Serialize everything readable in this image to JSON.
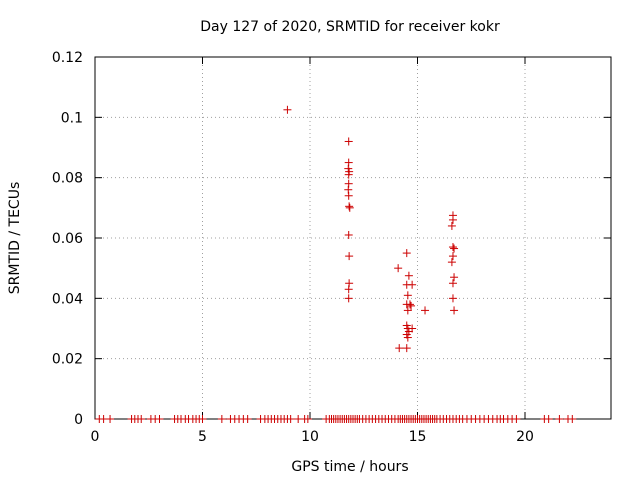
{
  "chart_data": {
    "type": "scatter",
    "title": "Day 127 of 2020, SRMTID for receiver kokr",
    "xlabel": "GPS time / hours",
    "ylabel": "SRMTID / TECUs",
    "xlim": [
      0,
      24
    ],
    "ylim": [
      0,
      0.12
    ],
    "x_ticks": [
      0,
      5,
      10,
      15,
      20
    ],
    "y_ticks": [
      0,
      0.02,
      0.04,
      0.06,
      0.08,
      0.1,
      0.12
    ],
    "x_tick_labels": [
      "0",
      "5",
      "10",
      "15",
      "20"
    ],
    "y_tick_labels": [
      "0",
      "0.02",
      "0.04",
      "0.06",
      "0.08",
      "0.1",
      "0.12"
    ],
    "grid": true,
    "marker": "+",
    "color": "#cc0000",
    "series": [
      {
        "name": "",
        "points": [
          [
            8.95,
            0.1025
          ],
          [
            11.8,
            0.092
          ],
          [
            11.8,
            0.085
          ],
          [
            11.78,
            0.083
          ],
          [
            11.82,
            0.082
          ],
          [
            11.8,
            0.081
          ],
          [
            11.8,
            0.078
          ],
          [
            11.78,
            0.076
          ],
          [
            11.8,
            0.074
          ],
          [
            11.82,
            0.0705
          ],
          [
            11.85,
            0.07
          ],
          [
            11.8,
            0.061
          ],
          [
            11.82,
            0.054
          ],
          [
            11.82,
            0.045
          ],
          [
            11.8,
            0.043
          ],
          [
            11.8,
            0.04
          ],
          [
            14.1,
            0.05
          ],
          [
            14.15,
            0.0235
          ],
          [
            14.5,
            0.055
          ],
          [
            14.6,
            0.0475
          ],
          [
            14.5,
            0.0445
          ],
          [
            14.75,
            0.0445
          ],
          [
            14.55,
            0.041
          ],
          [
            14.5,
            0.038
          ],
          [
            14.65,
            0.038
          ],
          [
            14.7,
            0.0375
          ],
          [
            14.55,
            0.036
          ],
          [
            14.5,
            0.031
          ],
          [
            14.55,
            0.03
          ],
          [
            14.75,
            0.03
          ],
          [
            14.6,
            0.029
          ],
          [
            14.5,
            0.028
          ],
          [
            14.55,
            0.027
          ],
          [
            14.5,
            0.0235
          ],
          [
            15.35,
            0.036
          ],
          [
            16.65,
            0.0675
          ],
          [
            16.65,
            0.066
          ],
          [
            16.6,
            0.064
          ],
          [
            16.65,
            0.057
          ],
          [
            16.7,
            0.0565
          ],
          [
            16.65,
            0.054
          ],
          [
            16.6,
            0.052
          ],
          [
            16.7,
            0.047
          ],
          [
            16.65,
            0.045
          ],
          [
            16.65,
            0.04
          ],
          [
            16.7,
            0.036
          ],
          [
            0.2,
            0
          ],
          [
            0.4,
            0
          ],
          [
            0.7,
            0
          ],
          [
            1.7,
            0
          ],
          [
            1.85,
            0
          ],
          [
            2.0,
            0
          ],
          [
            2.15,
            0
          ],
          [
            2.6,
            0
          ],
          [
            2.8,
            0
          ],
          [
            3.0,
            0
          ],
          [
            3.7,
            0
          ],
          [
            3.85,
            0
          ],
          [
            4.0,
            0
          ],
          [
            4.2,
            0
          ],
          [
            4.35,
            0
          ],
          [
            4.55,
            0
          ],
          [
            4.7,
            0
          ],
          [
            4.85,
            0
          ],
          [
            5.0,
            0
          ],
          [
            5.9,
            0
          ],
          [
            6.3,
            0
          ],
          [
            6.5,
            0
          ],
          [
            6.7,
            0
          ],
          [
            6.9,
            0
          ],
          [
            7.1,
            0
          ],
          [
            7.7,
            0
          ],
          [
            7.9,
            0
          ],
          [
            8.05,
            0
          ],
          [
            8.2,
            0
          ],
          [
            8.35,
            0
          ],
          [
            8.5,
            0
          ],
          [
            8.65,
            0
          ],
          [
            8.8,
            0
          ],
          [
            8.95,
            0
          ],
          [
            9.1,
            0
          ],
          [
            9.45,
            0
          ],
          [
            9.75,
            0
          ],
          [
            9.9,
            0
          ],
          [
            10.75,
            0
          ],
          [
            10.9,
            0
          ],
          [
            11.0,
            0
          ],
          [
            11.1,
            0
          ],
          [
            11.2,
            0
          ],
          [
            11.3,
            0
          ],
          [
            11.4,
            0
          ],
          [
            11.5,
            0
          ],
          [
            11.6,
            0
          ],
          [
            11.7,
            0
          ],
          [
            11.8,
            0
          ],
          [
            11.9,
            0
          ],
          [
            12.0,
            0
          ],
          [
            12.1,
            0
          ],
          [
            12.2,
            0
          ],
          [
            12.3,
            0
          ],
          [
            12.45,
            0
          ],
          [
            12.6,
            0
          ],
          [
            12.75,
            0
          ],
          [
            12.9,
            0
          ],
          [
            13.05,
            0
          ],
          [
            13.2,
            0
          ],
          [
            13.35,
            0
          ],
          [
            13.5,
            0
          ],
          [
            13.65,
            0
          ],
          [
            13.8,
            0
          ],
          [
            13.95,
            0
          ],
          [
            14.1,
            0
          ],
          [
            14.2,
            0
          ],
          [
            14.3,
            0
          ],
          [
            14.4,
            0
          ],
          [
            14.5,
            0
          ],
          [
            14.6,
            0
          ],
          [
            14.7,
            0
          ],
          [
            14.8,
            0
          ],
          [
            14.9,
            0
          ],
          [
            15.0,
            0
          ],
          [
            15.1,
            0
          ],
          [
            15.2,
            0
          ],
          [
            15.3,
            0
          ],
          [
            15.4,
            0
          ],
          [
            15.5,
            0
          ],
          [
            15.6,
            0
          ],
          [
            15.7,
            0
          ],
          [
            15.8,
            0
          ],
          [
            15.9,
            0
          ],
          [
            16.05,
            0
          ],
          [
            16.2,
            0
          ],
          [
            16.35,
            0
          ],
          [
            16.5,
            0
          ],
          [
            16.65,
            0
          ],
          [
            16.8,
            0
          ],
          [
            16.95,
            0
          ],
          [
            17.1,
            0
          ],
          [
            17.3,
            0
          ],
          [
            17.5,
            0
          ],
          [
            17.7,
            0
          ],
          [
            17.9,
            0
          ],
          [
            18.1,
            0
          ],
          [
            18.3,
            0
          ],
          [
            18.5,
            0
          ],
          [
            18.7,
            0
          ],
          [
            18.85,
            0
          ],
          [
            19.0,
            0
          ],
          [
            19.2,
            0
          ],
          [
            19.4,
            0
          ],
          [
            19.6,
            0
          ],
          [
            20.9,
            0
          ],
          [
            21.1,
            0
          ],
          [
            21.6,
            0
          ],
          [
            22.0,
            0
          ],
          [
            22.2,
            0
          ]
        ]
      }
    ]
  }
}
